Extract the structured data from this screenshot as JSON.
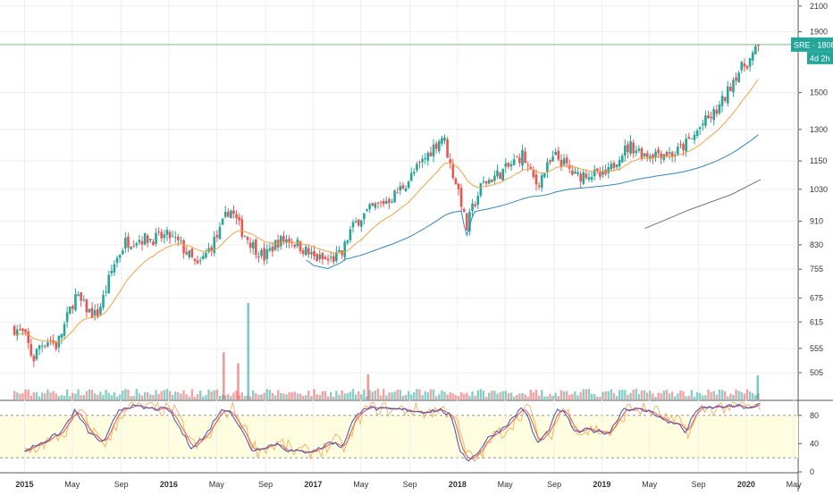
{
  "chart_data": {
    "type": "candlestick",
    "ticker_label": "SRE",
    "last_price_label": "1808",
    "countdown_label": "4d 2h",
    "colors": {
      "up": "#26a69a",
      "down": "#ef5350",
      "ema_short": "#f5a142",
      "ema_mid": "#2e86c1",
      "ema_long": "#777777",
      "stoch_k": "#3f51b5",
      "stoch_d": "#ef5350",
      "stoch_slow": "#f7a54a",
      "last_price_line": "#4caf50",
      "stoch_band": "#fffde0",
      "grid": "#eeeeee"
    },
    "price_axis": {
      "scale": "log",
      "range": [
        455,
        2150
      ],
      "ticks": [
        "2100",
        "1900",
        "1500",
        "1300",
        "1150",
        "1030",
        "910",
        "830",
        "755",
        "675",
        "615",
        "555",
        "505"
      ]
    },
    "time_axis": {
      "range": [
        2014.83,
        2020.36
      ],
      "ticks": [
        {
          "t": 2015.0,
          "label": "2015",
          "bold": true
        },
        {
          "t": 2015.33,
          "label": "May",
          "bold": false
        },
        {
          "t": 2015.67,
          "label": "Sep",
          "bold": false
        },
        {
          "t": 2016.0,
          "label": "2016",
          "bold": true
        },
        {
          "t": 2016.33,
          "label": "May",
          "bold": false
        },
        {
          "t": 2016.67,
          "label": "Sep",
          "bold": false
        },
        {
          "t": 2017.0,
          "label": "2017",
          "bold": true
        },
        {
          "t": 2017.33,
          "label": "May",
          "bold": false
        },
        {
          "t": 2017.67,
          "label": "Sep",
          "bold": false
        },
        {
          "t": 2018.0,
          "label": "2018",
          "bold": true
        },
        {
          "t": 2018.33,
          "label": "May",
          "bold": false
        },
        {
          "t": 2018.67,
          "label": "Sep",
          "bold": false
        },
        {
          "t": 2019.0,
          "label": "2019",
          "bold": true
        },
        {
          "t": 2019.33,
          "label": "May",
          "bold": false
        },
        {
          "t": 2019.67,
          "label": "Sep",
          "bold": false
        },
        {
          "t": 2020.0,
          "label": "2020",
          "bold": true
        },
        {
          "t": 2020.33,
          "label": "May",
          "bold": false
        }
      ]
    },
    "price_path": [
      [
        2014.93,
        600
      ],
      [
        2015.0,
        585
      ],
      [
        2015.06,
        530
      ],
      [
        2015.1,
        560
      ],
      [
        2015.17,
        575
      ],
      [
        2015.22,
        560
      ],
      [
        2015.27,
        600
      ],
      [
        2015.35,
        680
      ],
      [
        2015.45,
        640
      ],
      [
        2015.5,
        630
      ],
      [
        2015.55,
        680
      ],
      [
        2015.62,
        770
      ],
      [
        2015.7,
        840
      ],
      [
        2015.8,
        850
      ],
      [
        2015.9,
        850
      ],
      [
        2016.0,
        860
      ],
      [
        2016.08,
        830
      ],
      [
        2016.15,
        790
      ],
      [
        2016.2,
        760
      ],
      [
        2016.27,
        810
      ],
      [
        2016.35,
        870
      ],
      [
        2016.42,
        960
      ],
      [
        2016.5,
        880
      ],
      [
        2016.58,
        830
      ],
      [
        2016.66,
        790
      ],
      [
        2016.75,
        840
      ],
      [
        2016.83,
        850
      ],
      [
        2016.9,
        830
      ],
      [
        2017.0,
        790
      ],
      [
        2017.1,
        780
      ],
      [
        2017.2,
        800
      ],
      [
        2017.25,
        870
      ],
      [
        2017.32,
        920
      ],
      [
        2017.42,
        960
      ],
      [
        2017.55,
        1000
      ],
      [
        2017.65,
        1060
      ],
      [
        2017.75,
        1140
      ],
      [
        2017.85,
        1230
      ],
      [
        2017.9,
        1270
      ],
      [
        2017.95,
        1130
      ],
      [
        2018.02,
        1000
      ],
      [
        2018.06,
        880
      ],
      [
        2018.1,
        950
      ],
      [
        2018.17,
        1050
      ],
      [
        2018.25,
        1080
      ],
      [
        2018.35,
        1120
      ],
      [
        2018.45,
        1180
      ],
      [
        2018.5,
        1100
      ],
      [
        2018.55,
        1050
      ],
      [
        2018.62,
        1120
      ],
      [
        2018.68,
        1170
      ],
      [
        2018.75,
        1130
      ],
      [
        2018.82,
        1080
      ],
      [
        2018.9,
        1100
      ],
      [
        2019.0,
        1080
      ],
      [
        2019.05,
        1100
      ],
      [
        2019.12,
        1180
      ],
      [
        2019.2,
        1220
      ],
      [
        2019.3,
        1180
      ],
      [
        2019.4,
        1190
      ],
      [
        2019.5,
        1180
      ],
      [
        2019.55,
        1210
      ],
      [
        2019.62,
        1250
      ],
      [
        2019.7,
        1330
      ],
      [
        2019.75,
        1360
      ],
      [
        2019.8,
        1400
      ],
      [
        2019.87,
        1500
      ],
      [
        2019.92,
        1600
      ],
      [
        2019.97,
        1650
      ],
      [
        2020.02,
        1700
      ],
      [
        2020.1,
        1808
      ]
    ],
    "ema_mid_start": [
      2016.93,
      745
    ],
    "ema_long_path": [
      [
        2019.3,
        885
      ],
      [
        2019.6,
        950
      ],
      [
        2019.9,
        1010
      ],
      [
        2020.1,
        1070
      ]
    ],
    "volume_spikes": [
      {
        "t": 2016.38,
        "rel": 0.43,
        "dir": "down"
      },
      {
        "t": 2016.48,
        "rel": 0.33,
        "dir": "down"
      },
      {
        "t": 2016.55,
        "rel": 0.88,
        "dir": "up"
      },
      {
        "t": 2017.38,
        "rel": 0.23,
        "dir": "down"
      },
      {
        "t": 2020.08,
        "rel": 0.22,
        "dir": "up"
      }
    ],
    "stoch_axis": {
      "range": [
        0,
        100
      ],
      "ticks": [
        "80",
        "40",
        "0"
      ],
      "band": [
        20,
        80
      ]
    },
    "stoch_path": [
      [
        2015.0,
        30
      ],
      [
        2015.25,
        55
      ],
      [
        2015.35,
        87
      ],
      [
        2015.45,
        55
      ],
      [
        2015.55,
        40
      ],
      [
        2015.65,
        88
      ],
      [
        2015.72,
        93
      ],
      [
        2015.85,
        90
      ],
      [
        2016.0,
        88
      ],
      [
        2016.08,
        60
      ],
      [
        2016.15,
        35
      ],
      [
        2016.25,
        50
      ],
      [
        2016.35,
        85
      ],
      [
        2016.42,
        89
      ],
      [
        2016.5,
        60
      ],
      [
        2016.58,
        30
      ],
      [
        2016.65,
        35
      ],
      [
        2016.75,
        40
      ],
      [
        2016.83,
        30
      ],
      [
        2016.93,
        28
      ],
      [
        2017.05,
        33
      ],
      [
        2017.12,
        43
      ],
      [
        2017.2,
        35
      ],
      [
        2017.27,
        70
      ],
      [
        2017.35,
        92
      ],
      [
        2017.5,
        88
      ],
      [
        2017.65,
        88
      ],
      [
        2017.75,
        85
      ],
      [
        2017.88,
        88
      ],
      [
        2017.95,
        80
      ],
      [
        2018.02,
        30
      ],
      [
        2018.08,
        16
      ],
      [
        2018.15,
        30
      ],
      [
        2018.22,
        50
      ],
      [
        2018.3,
        60
      ],
      [
        2018.38,
        75
      ],
      [
        2018.45,
        93
      ],
      [
        2018.5,
        70
      ],
      [
        2018.55,
        40
      ],
      [
        2018.62,
        55
      ],
      [
        2018.7,
        90
      ],
      [
        2018.75,
        80
      ],
      [
        2018.82,
        55
      ],
      [
        2018.9,
        60
      ],
      [
        2018.97,
        58
      ],
      [
        2019.05,
        55
      ],
      [
        2019.15,
        90
      ],
      [
        2019.25,
        88
      ],
      [
        2019.35,
        85
      ],
      [
        2019.45,
        70
      ],
      [
        2019.52,
        70
      ],
      [
        2019.58,
        55
      ],
      [
        2019.65,
        88
      ],
      [
        2019.8,
        92
      ],
      [
        2019.95,
        93
      ],
      [
        2020.05,
        90
      ],
      [
        2020.1,
        97
      ]
    ]
  }
}
